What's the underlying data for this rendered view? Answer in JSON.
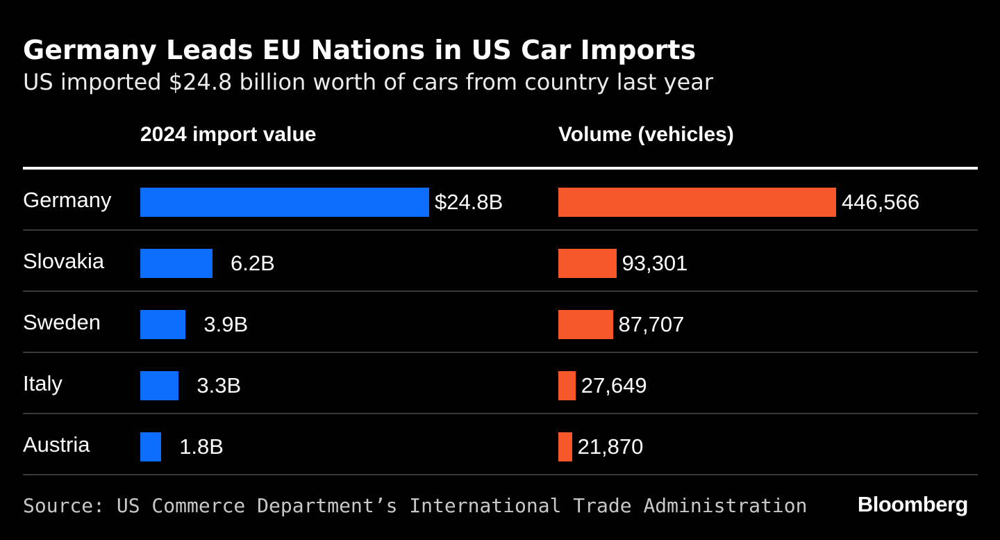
{
  "chart_data": {
    "type": "bar",
    "orientation": "horizontal",
    "title": "Germany Leads EU Nations in US Car Imports",
    "subtitle": "US imported $24.8 billion worth of cars from country last year",
    "categories": [
      "Germany",
      "Slovakia",
      "Sweden",
      "Italy",
      "Austria"
    ],
    "series": [
      {
        "name": "2024 import value",
        "unit": "billion USD",
        "values": [
          24.8,
          6.2,
          3.9,
          3.3,
          1.8
        ],
        "labels": [
          "$24.8B",
          "6.2B",
          "3.9B",
          "3.3B",
          "1.8B"
        ],
        "color": "#0d6efd"
      },
      {
        "name": "Volume (vehicles)",
        "unit": "vehicles",
        "values": [
          446566,
          93301,
          87707,
          27649,
          21870
        ],
        "labels": [
          "446,566",
          "93,301",
          "87,707",
          "27,649",
          "21,870"
        ],
        "color": "#f6582c"
      }
    ],
    "source": "Source: US Commerce Department’s International Trade Administration",
    "brand": "Bloomberg"
  },
  "colors": {
    "background": "#000000",
    "text": "#ffffff"
  }
}
